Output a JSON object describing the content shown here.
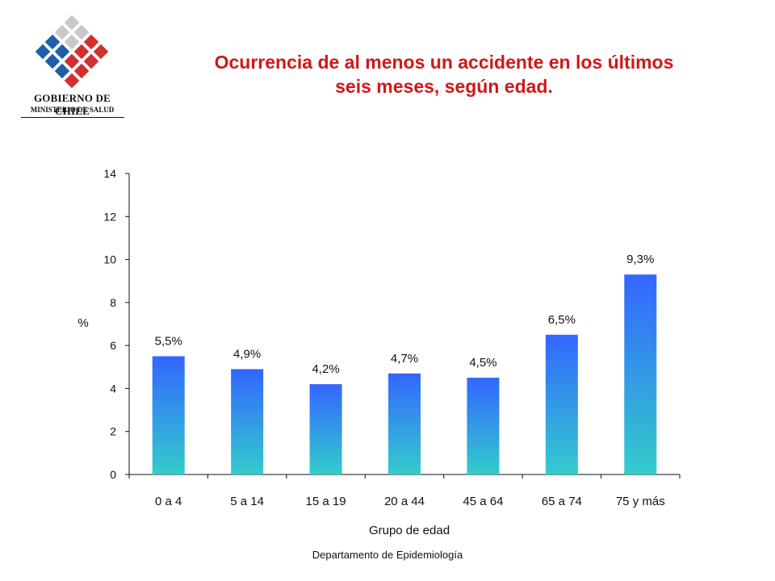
{
  "header": {
    "logo_line1": "GOBIERNO DE CHILE",
    "logo_line2": "MINISTERIO DE SALUD",
    "title_line1": "Ocurrencia de al menos un accidente en los últimos",
    "title_line2": "seis meses, según edad."
  },
  "chart_data": {
    "type": "bar",
    "categories": [
      "0 a 4",
      "5 a 14",
      "15 a 19",
      "20 a 44",
      "45 a 64",
      "65 a 74",
      "75 y más"
    ],
    "values": [
      5.5,
      4.9,
      4.2,
      4.7,
      4.5,
      6.5,
      9.3
    ],
    "data_labels": [
      "5,5%",
      "4,9%",
      "4,2%",
      "4,7%",
      "4,5%",
      "6,5%",
      "9,3%"
    ],
    "title": "Ocurrencia de al menos un accidente en los últimos seis meses, según edad.",
    "xlabel": "Grupo de edad",
    "ylabel": "%",
    "ylim": [
      0,
      14
    ],
    "yticks": [
      0,
      2,
      4,
      6,
      8,
      10,
      12,
      14
    ],
    "grid": false,
    "legend": "none",
    "colors": {
      "bar_top": "#3366ff",
      "bar_bottom": "#33cccc",
      "title": "#d01818"
    }
  },
  "footer": {
    "text": "Departamento de Epidemiología"
  },
  "logo_colors": {
    "red": "#d32f2f",
    "blue": "#1f5fa8",
    "gray": "#c8c8c8"
  }
}
